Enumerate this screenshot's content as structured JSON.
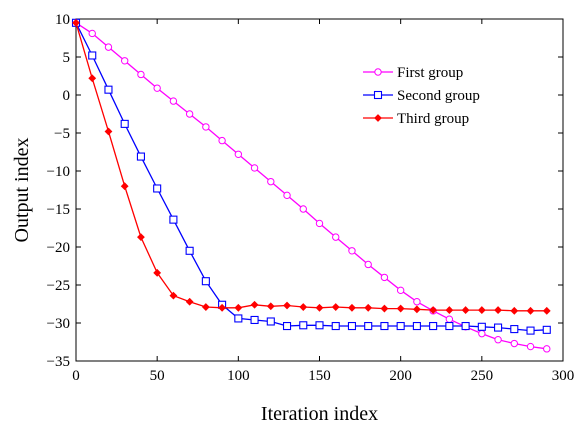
{
  "chart_data": {
    "type": "line",
    "xlabel": "Iteration index",
    "ylabel": "Output index",
    "xlim": [
      0,
      300
    ],
    "ylim": [
      -35,
      10
    ],
    "xticks": [
      0,
      50,
      100,
      150,
      200,
      250,
      300
    ],
    "yticks": [
      10,
      5,
      0,
      -5,
      -10,
      -15,
      -20,
      -25,
      -30,
      -35
    ],
    "grid": false,
    "legend_position": "top-right",
    "series": [
      {
        "name": "First group",
        "color": "#ff00ff",
        "marker": "circle",
        "x": [
          0,
          10,
          20,
          30,
          40,
          50,
          60,
          70,
          80,
          90,
          100,
          110,
          120,
          130,
          140,
          150,
          160,
          170,
          180,
          190,
          200,
          210,
          220,
          230,
          240,
          250,
          260,
          270,
          280,
          290
        ],
        "y": [
          9.5,
          8.1,
          6.3,
          4.5,
          2.7,
          0.9,
          -0.8,
          -2.5,
          -4.2,
          -6.0,
          -7.8,
          -9.6,
          -11.4,
          -13.2,
          -15.0,
          -16.9,
          -18.7,
          -20.5,
          -22.3,
          -24.0,
          -25.7,
          -27.2,
          -28.4,
          -29.5,
          -30.5,
          -31.4,
          -32.2,
          -32.7,
          -33.1,
          -33.4
        ]
      },
      {
        "name": "Second group",
        "color": "#0000ff",
        "marker": "square",
        "x": [
          0,
          10,
          20,
          30,
          40,
          50,
          60,
          70,
          80,
          90,
          100,
          110,
          120,
          130,
          140,
          150,
          160,
          170,
          180,
          190,
          200,
          210,
          220,
          230,
          240,
          250,
          260,
          270,
          280,
          290
        ],
        "y": [
          9.5,
          5.2,
          0.7,
          -3.8,
          -8.1,
          -12.3,
          -16.4,
          -20.5,
          -24.5,
          -27.6,
          -29.4,
          -29.6,
          -29.8,
          -30.4,
          -30.3,
          -30.3,
          -30.4,
          -30.4,
          -30.4,
          -30.4,
          -30.4,
          -30.4,
          -30.4,
          -30.4,
          -30.4,
          -30.5,
          -30.6,
          -30.8,
          -31.0,
          -30.9
        ]
      },
      {
        "name": "Third group",
        "color": "#ff0000",
        "marker": "diamond",
        "x": [
          0,
          10,
          20,
          30,
          40,
          50,
          60,
          70,
          80,
          90,
          100,
          110,
          120,
          130,
          140,
          150,
          160,
          170,
          180,
          190,
          200,
          210,
          220,
          230,
          240,
          250,
          260,
          270,
          280,
          290
        ],
        "y": [
          9.5,
          2.2,
          -4.8,
          -12.0,
          -18.7,
          -23.4,
          -26.4,
          -27.2,
          -27.9,
          -28.0,
          -28.0,
          -27.6,
          -27.8,
          -27.7,
          -27.9,
          -28.0,
          -27.9,
          -28.0,
          -28.0,
          -28.1,
          -28.1,
          -28.2,
          -28.3,
          -28.3,
          -28.3,
          -28.3,
          -28.3,
          -28.4,
          -28.4,
          -28.4
        ]
      }
    ]
  }
}
